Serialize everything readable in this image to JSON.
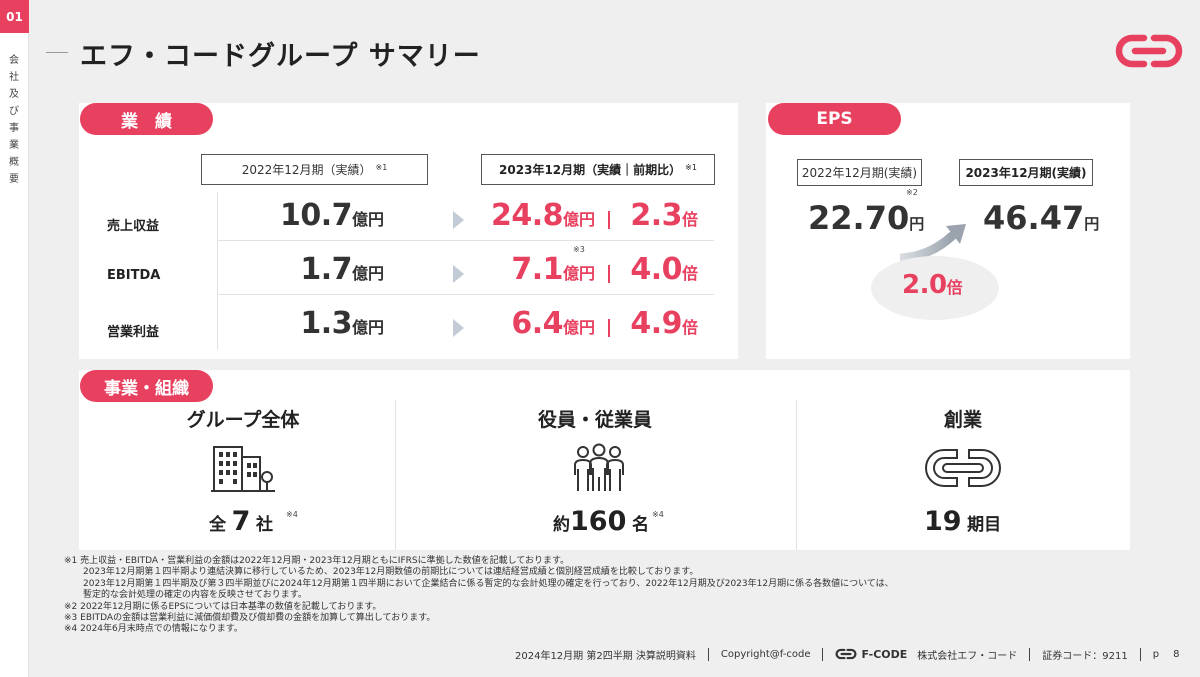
{
  "section": {
    "number": "01",
    "vertical_label": "会社及び事業概要"
  },
  "title": "エフ・コードグループ サマリー",
  "performance": {
    "label": "業　績",
    "col_prev": "2022年12月期（実績）",
    "col_prev_note": "※1",
    "col_curr": "2023年12月期（実績｜前期比）",
    "col_curr_note": "※1",
    "rows": [
      {
        "label": "売上収益",
        "prev": "10.7",
        "prev_unit": "億円",
        "curr": "24.8",
        "curr_unit": "億円",
        "ratio": "2.3",
        "ratio_unit": "倍"
      },
      {
        "label": "EBITDA",
        "prev": "1.7",
        "prev_unit": "億円",
        "curr": "7.1",
        "curr_unit": "億円",
        "ratio": "4.0",
        "ratio_unit": "倍",
        "note": "※3"
      },
      {
        "label": "営業利益",
        "prev": "1.3",
        "prev_unit": "億円",
        "curr": "6.4",
        "curr_unit": "億円",
        "ratio": "4.9",
        "ratio_unit": "倍"
      }
    ]
  },
  "eps": {
    "label": "EPS",
    "col_prev": "2022年12月期(実績)",
    "col_curr": "2023年12月期(実績)",
    "prev_note": "※2",
    "prev": "22.70",
    "curr": "46.47",
    "unit": "円",
    "ratio": "2.0",
    "ratio_unit": "倍"
  },
  "business": {
    "label": "事業・組織",
    "items": [
      {
        "title": "グループ全体",
        "prefix": "全",
        "value": "7",
        "unit": "社",
        "note": "※4",
        "icon": "building-icon"
      },
      {
        "title": "役員・従業員",
        "prefix": "約",
        "value": "160",
        "unit": "名",
        "note": "※4",
        "icon": "people-icon"
      },
      {
        "title": "創業",
        "prefix": "",
        "value": "19",
        "unit": "期目",
        "note": "",
        "icon": "fcode-logo-icon"
      }
    ]
  },
  "footnotes": [
    "※1  売上収益・EBITDA・営業利益の金額は2022年12月期・2023年12月期ともにIFRSに準拠した数値を記載しております。",
    "2023年12月期第１四半期より連結決算に移行しているため、2023年12月期数値の前期比については連結経営成績と個別経営成績を比較しております。",
    "2023年12月期第１四半期及び第３四半期並びに2024年12月期第１四半期において企業結合に係る暫定的な会計処理の確定を行っており、2022年12月期及び2023年12月期に係る各数値については、",
    "暫定的な会計処理の確定の内容を反映させております。",
    "※2 2022年12月期に係るEPSについては日本基準の数値を記載しております。",
    "※3 EBITDAの金額は営業利益に減価償却費及び償却費の金額を加算して算出しております。",
    "※4 2024年6月末時点での情報になります。"
  ],
  "footer": {
    "doc": "2024年12月期 第2四半期 決算説明資料",
    "copyright": "Copyright@f-code",
    "brand": "F-CODE",
    "company": "株式会社エフ・コード",
    "code": "証券コード：9211",
    "page_prefix": "p",
    "page": "8"
  },
  "colors": {
    "accent": "#e8405f",
    "background": "#efefef",
    "card": "#ffffff"
  }
}
